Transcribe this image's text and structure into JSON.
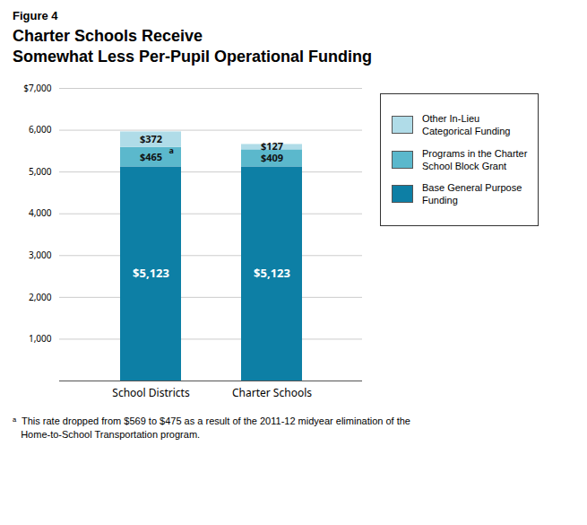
{
  "chart_data": {
    "type": "bar",
    "figure_label": "Figure 4",
    "title": "Charter Schools Receive\nSomewhat Less Per-Pupil Operational Funding",
    "categories": [
      "School Districts",
      "Charter Schools"
    ],
    "series": [
      {
        "name": "Base General Purpose\nFunding",
        "color": "#0d7fa5",
        "values": [
          5123,
          5123
        ],
        "value_labels": [
          "$5,123",
          "$5,123"
        ]
      },
      {
        "name": "Programs in the Charter\nSchool Block Grant",
        "color": "#5bb8cc",
        "values": [
          465,
          409
        ],
        "value_labels": [
          "$465",
          "$409"
        ]
      },
      {
        "name": "Other In-Lieu\nCategorical Funding",
        "color": "#b0dce8",
        "values": [
          372,
          127
        ],
        "value_labels": [
          "$372",
          "$127"
        ]
      }
    ],
    "stacked": true,
    "data_labels": true,
    "ylim": [
      0,
      7000
    ],
    "yticks": [
      {
        "value": 0,
        "label": ""
      },
      {
        "value": 1000,
        "label": "1,000"
      },
      {
        "value": 2000,
        "label": "2,000"
      },
      {
        "value": 3000,
        "label": "3,000"
      },
      {
        "value": 4000,
        "label": "4,000"
      },
      {
        "value": 5000,
        "label": "5,000"
      },
      {
        "value": 6000,
        "label": "6,000"
      },
      {
        "value": 7000,
        "label": "$7,000"
      }
    ],
    "grid": true,
    "legend": "right",
    "annotations": [
      {
        "text": "a",
        "category": "School Districts",
        "series": "Programs in the Charter\nSchool Block Grant"
      }
    ],
    "footnote": [
      "ᵃ  This rate dropped from $569 to $475 as a result of the 2011-12 midyear elimination of the",
      "   Home-to-School Transportation program."
    ]
  }
}
